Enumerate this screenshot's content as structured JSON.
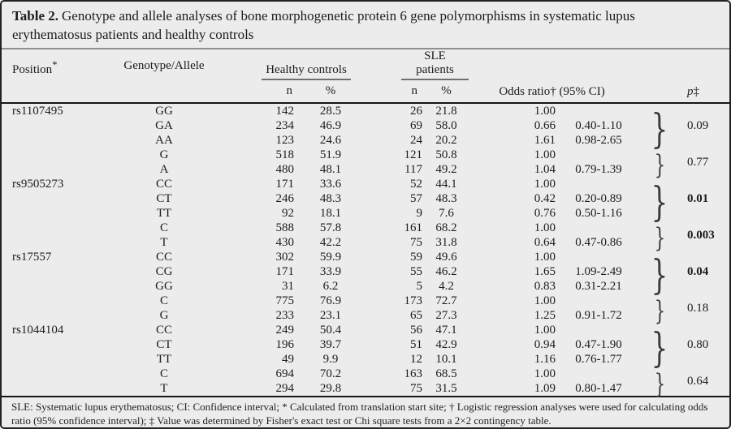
{
  "colors": {
    "background": "#ececec",
    "outer_border": "#222222",
    "title_rule": "#8f8f8f",
    "header_rule": "#151515",
    "text": "#1c1c1c"
  },
  "title": {
    "label": "Table 2.",
    "text": "Genotype and allele analyses of bone morphogenetic protein 6 gene polymorphisms in systematic lupus erythematosus patients and healthy controls"
  },
  "table": {
    "headers": {
      "position": "Position",
      "position_note": "*",
      "genotype_allele": "Genotype/Allele",
      "healthy_controls": "Healthy controls",
      "sle_patients": "SLE patients",
      "n": "n",
      "pct": "%",
      "odds_ratio": "Odds ratio† (95% CI)",
      "p": "p",
      "p_note": "‡"
    },
    "brace_glyph": "}",
    "sections": [
      {
        "position": "rs1107495",
        "groups": [
          {
            "p": "0.09",
            "p_bold": false,
            "rows": [
              {
                "genotype": "GG",
                "hc_n": "142",
                "hc_pct": "28.5",
                "sle_n": "26",
                "sle_pct": "21.8",
                "or": "1.00",
                "ci": ""
              },
              {
                "genotype": "GA",
                "hc_n": "234",
                "hc_pct": "46.9",
                "sle_n": "69",
                "sle_pct": "58.0",
                "or": "0.66",
                "ci": "0.40-1.10"
              },
              {
                "genotype": "AA",
                "hc_n": "123",
                "hc_pct": "24.6",
                "sle_n": "24",
                "sle_pct": "20.2",
                "or": "1.61",
                "ci": "0.98-2.65"
              }
            ]
          },
          {
            "p": "0.77",
            "p_bold": false,
            "rows": [
              {
                "genotype": "G",
                "hc_n": "518",
                "hc_pct": "51.9",
                "sle_n": "121",
                "sle_pct": "50.8",
                "or": "1.00",
                "ci": ""
              },
              {
                "genotype": "A",
                "hc_n": "480",
                "hc_pct": "48.1",
                "sle_n": "117",
                "sle_pct": "49.2",
                "or": "1.04",
                "ci": "0.79-1.39"
              }
            ]
          }
        ]
      },
      {
        "position": "rs9505273",
        "groups": [
          {
            "p": "0.01",
            "p_bold": true,
            "rows": [
              {
                "genotype": "CC",
                "hc_n": "171",
                "hc_pct": "33.6",
                "sle_n": "52",
                "sle_pct": "44.1",
                "or": "1.00",
                "ci": ""
              },
              {
                "genotype": "CT",
                "hc_n": "246",
                "hc_pct": "48.3",
                "sle_n": "57",
                "sle_pct": "48.3",
                "or": "0.42",
                "ci": "0.20-0.89"
              },
              {
                "genotype": "TT",
                "hc_n": "92",
                "hc_pct": "18.1",
                "sle_n": "9",
                "sle_pct": "7.6",
                "or": "0.76",
                "ci": "0.50-1.16"
              }
            ]
          },
          {
            "p": "0.003",
            "p_bold": true,
            "rows": [
              {
                "genotype": "C",
                "hc_n": "588",
                "hc_pct": "57.8",
                "sle_n": "161",
                "sle_pct": "68.2",
                "or": "1.00",
                "ci": ""
              },
              {
                "genotype": "T",
                "hc_n": "430",
                "hc_pct": "42.2",
                "sle_n": "75",
                "sle_pct": "31.8",
                "or": "0.64",
                "ci": "0.47-0.86"
              }
            ]
          }
        ]
      },
      {
        "position": "rs17557",
        "groups": [
          {
            "p": "0.04",
            "p_bold": true,
            "rows": [
              {
                "genotype": "CC",
                "hc_n": "302",
                "hc_pct": "59.9",
                "sle_n": "59",
                "sle_pct": "49.6",
                "or": "1.00",
                "ci": ""
              },
              {
                "genotype": "CG",
                "hc_n": "171",
                "hc_pct": "33.9",
                "sle_n": "55",
                "sle_pct": "46.2",
                "or": "1.65",
                "ci": "1.09-2.49"
              },
              {
                "genotype": "GG",
                "hc_n": "31",
                "hc_pct": "6.2",
                "sle_n": "5",
                "sle_pct": "4.2",
                "or": "0.83",
                "ci": "0.31-2.21"
              }
            ]
          },
          {
            "p": "0.18",
            "p_bold": false,
            "rows": [
              {
                "genotype": "C",
                "hc_n": "775",
                "hc_pct": "76.9",
                "sle_n": "173",
                "sle_pct": "72.7",
                "or": "1.00",
                "ci": ""
              },
              {
                "genotype": "G",
                "hc_n": "233",
                "hc_pct": "23.1",
                "sle_n": "65",
                "sle_pct": "27.3",
                "or": "1.25",
                "ci": "0.91-1.72"
              }
            ]
          }
        ]
      },
      {
        "position": "rs1044104",
        "groups": [
          {
            "p": "0.80",
            "p_bold": false,
            "rows": [
              {
                "genotype": "CC",
                "hc_n": "249",
                "hc_pct": "50.4",
                "sle_n": "56",
                "sle_pct": "47.1",
                "or": "1.00",
                "ci": ""
              },
              {
                "genotype": "CT",
                "hc_n": "196",
                "hc_pct": "39.7",
                "sle_n": "51",
                "sle_pct": "42.9",
                "or": "0.94",
                "ci": "0.47-1.90"
              },
              {
                "genotype": "TT",
                "hc_n": "49",
                "hc_pct": "9.9",
                "sle_n": "12",
                "sle_pct": "10.1",
                "or": "1.16",
                "ci": "0.76-1.77"
              }
            ]
          },
          {
            "p": "0.64",
            "p_bold": false,
            "rows": [
              {
                "genotype": "C",
                "hc_n": "694",
                "hc_pct": "70.2",
                "sle_n": "163",
                "sle_pct": "68.5",
                "or": "1.00",
                "ci": ""
              },
              {
                "genotype": "T",
                "hc_n": "294",
                "hc_pct": "29.8",
                "sle_n": "75",
                "sle_pct": "31.5",
                "or": "1.09",
                "ci": "0.80-1.47"
              }
            ]
          }
        ]
      }
    ]
  },
  "footnote": "SLE: Systematic lupus erythematosus; CI: Confidence interval; * Calculated from translation start site; † Logistic regression analyses were used for calculating odds ratio (95% confidence interval); ‡ Value was determined by Fisher's exact test or Chi square tests from a 2×2 contingency table."
}
